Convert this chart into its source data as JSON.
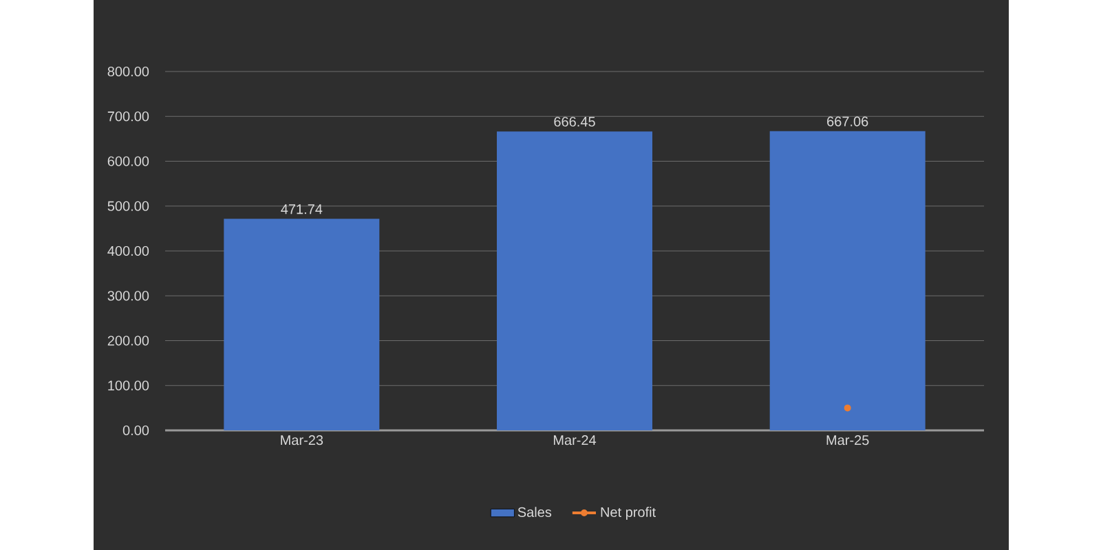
{
  "chart_data": {
    "type": "bar",
    "categories": [
      "Mar-23",
      "Mar-24",
      "Mar-25"
    ],
    "series": [
      {
        "name": "Sales",
        "color": "#4472c4",
        "values": [
          471.74,
          666.45,
          667.06
        ],
        "value_labels": [
          "471.74",
          "666.45",
          "667.06"
        ]
      },
      {
        "name": "Net profit",
        "type": "line",
        "color": "#ed7d31",
        "marker": "circle",
        "values": [
          null,
          null,
          50
        ]
      }
    ],
    "ylim": [
      0,
      800
    ],
    "yticks": [
      {
        "value": 0,
        "label": "0.00"
      },
      {
        "value": 100,
        "label": "100.00"
      },
      {
        "value": 200,
        "label": "200.00"
      },
      {
        "value": 300,
        "label": "300.00"
      },
      {
        "value": 400,
        "label": "400.00"
      },
      {
        "value": 500,
        "label": "500.00"
      },
      {
        "value": 600,
        "label": "600.00"
      },
      {
        "value": 700,
        "label": "700.00"
      },
      {
        "value": 800,
        "label": "800.00"
      }
    ],
    "grid": "y",
    "legend": "bottom"
  }
}
